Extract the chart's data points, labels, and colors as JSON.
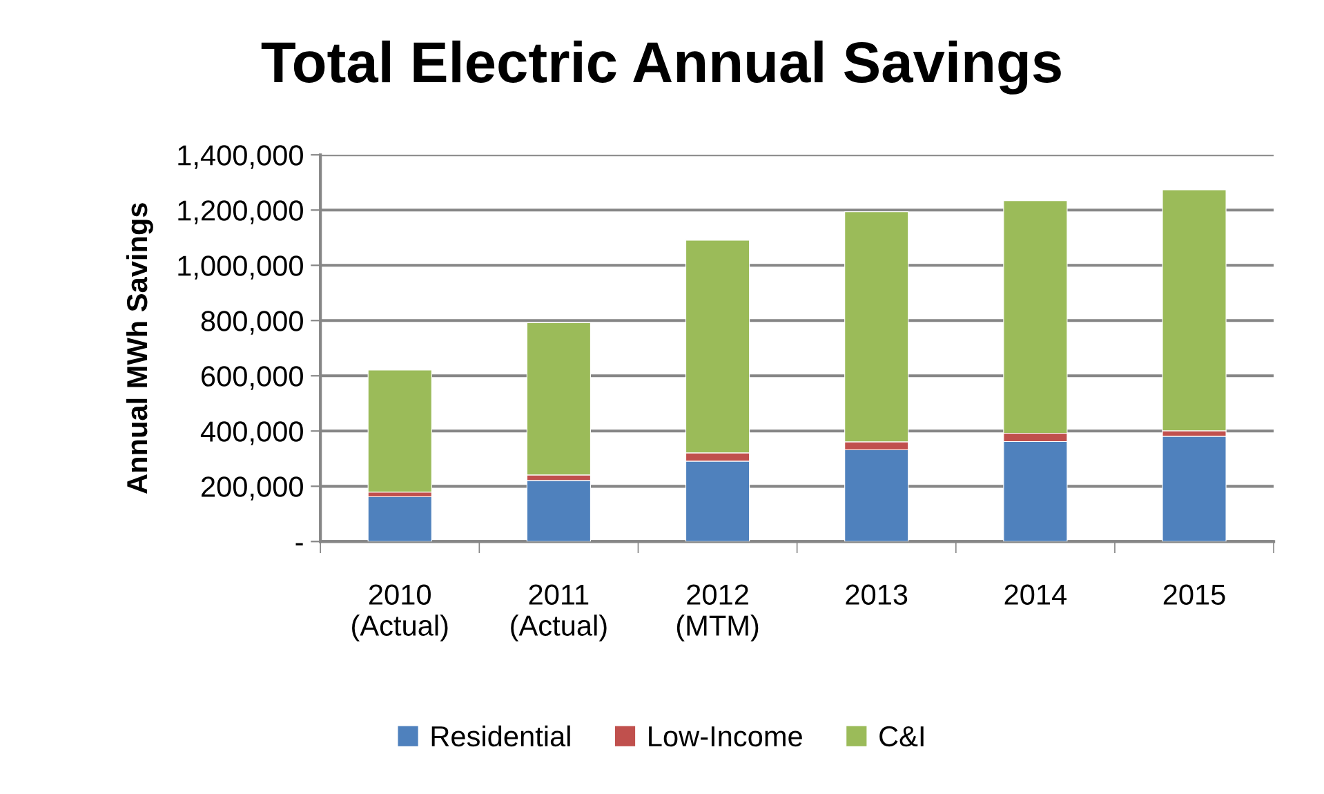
{
  "chart_data": {
    "type": "bar",
    "title": "Total Electric Annual Savings",
    "ylabel": "Annual MWh Savings",
    "categories": [
      "2010\n(Actual)",
      "2011\n(Actual)",
      "2012\n(MTM)",
      "2013",
      "2014",
      "2015"
    ],
    "stacked": true,
    "series": [
      {
        "name": "Residential",
        "color": "#4f81bd",
        "values": [
          162000,
          221000,
          291000,
          332000,
          362000,
          381000
        ]
      },
      {
        "name": "Low-Income",
        "color": "#c0504d",
        "values": [
          17000,
          20000,
          30000,
          29000,
          30000,
          20000
        ]
      },
      {
        "name": "C&I",
        "color": "#9bbb59",
        "values": [
          442000,
          551000,
          770000,
          833000,
          842000,
          872000
        ]
      }
    ],
    "ylim": [
      0,
      1400000
    ],
    "yticks": [
      {
        "value": 0,
        "label": "-"
      },
      {
        "value": 200000,
        "label": "200,000"
      },
      {
        "value": 400000,
        "label": "400,000"
      },
      {
        "value": 600000,
        "label": "600,000"
      },
      {
        "value": 800000,
        "label": "800,000"
      },
      {
        "value": 1000000,
        "label": "1,000,000"
      },
      {
        "value": 1200000,
        "label": "1,200,000"
      },
      {
        "value": 1400000,
        "label": "1,400,000"
      }
    ],
    "grid": "y",
    "legend": "bottom"
  }
}
